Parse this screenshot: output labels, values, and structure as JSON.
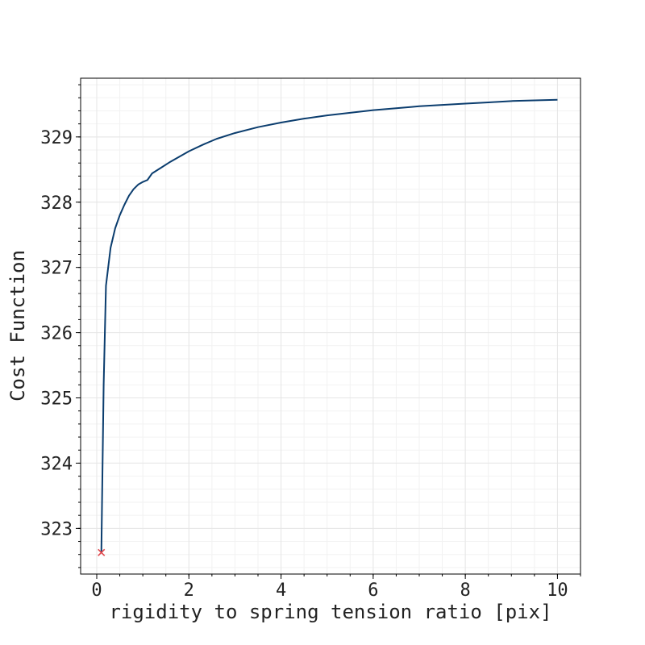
{
  "chart_data": {
    "type": "line",
    "title": "",
    "xlabel": "rigidity to spring tension ratio [pix]",
    "ylabel": "Cost Function",
    "xlim": [
      -0.35,
      10.5
    ],
    "ylim": [
      322.3,
      329.9
    ],
    "xticks": [
      0,
      2,
      4,
      6,
      8,
      10
    ],
    "yticks": [
      323,
      324,
      325,
      326,
      327,
      328,
      329
    ],
    "grid": true,
    "colors": {
      "line": "#0b3d6e",
      "marker": "#e0474c",
      "grid": "#e6e6e6",
      "axis": "#000000"
    },
    "series": [
      {
        "x": [
          0.1,
          0.15,
          0.2,
          0.3,
          0.4,
          0.5,
          0.6,
          0.7,
          0.8,
          0.9,
          1.0,
          1.1,
          1.2,
          1.4,
          1.6,
          1.8,
          2.0,
          2.3,
          2.6,
          3.0,
          3.5,
          4.0,
          4.5,
          5.0,
          5.5,
          6.0,
          6.5,
          7.0,
          7.5,
          8.0,
          8.5,
          9.0,
          9.5,
          10.0
        ],
        "y": [
          322.63,
          325.2,
          326.72,
          327.3,
          327.6,
          327.8,
          327.96,
          328.1,
          328.2,
          328.27,
          328.31,
          328.34,
          328.44,
          328.53,
          328.62,
          328.7,
          328.78,
          328.88,
          328.97,
          329.06,
          329.15,
          329.22,
          329.28,
          329.33,
          329.37,
          329.41,
          329.44,
          329.47,
          329.49,
          329.51,
          329.53,
          329.55,
          329.56,
          329.57
        ]
      }
    ],
    "marker": {
      "shape": "x",
      "x": 0.1,
      "y": 322.63
    }
  }
}
